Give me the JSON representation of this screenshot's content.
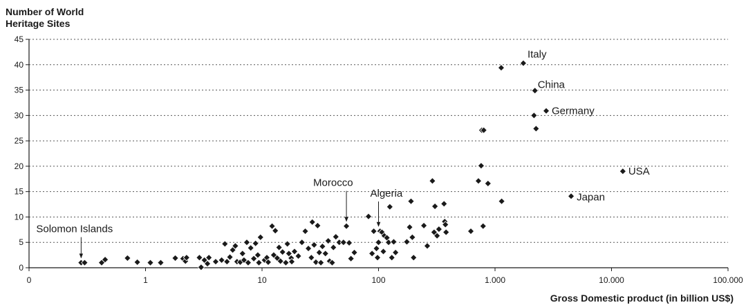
{
  "chart_data": {
    "type": "scatter",
    "title": "",
    "ylabel": "Number of World\nHeritage Sites",
    "xlabel": "Gross Domestic product (in billion US$)",
    "x_scale": "log",
    "xlim": [
      0.1,
      100000
    ],
    "ylim": [
      0,
      45
    ],
    "x_ticks": [
      0.1,
      1,
      10,
      100,
      1000,
      10000,
      100000
    ],
    "x_tick_labels": [
      "0",
      "1",
      "10",
      "100",
      "1.000",
      "10.000",
      "100.000"
    ],
    "y_ticks": [
      0,
      5,
      10,
      15,
      20,
      25,
      30,
      35,
      40,
      45
    ],
    "y_tick_labels": [
      "0",
      "5",
      "10",
      "15",
      "20",
      "25",
      "30",
      "35",
      "40",
      "45"
    ],
    "grid": "horizontal dotted",
    "marker": "diamond",
    "colors": {
      "marker": "#1a1a1a",
      "grid": "#555555",
      "axis": "#1a1a1a"
    },
    "points": [
      {
        "x": 0.28,
        "y": 1
      },
      {
        "x": 0.3,
        "y": 1
      },
      {
        "x": 0.42,
        "y": 1
      },
      {
        "x": 0.45,
        "y": 1.6
      },
      {
        "x": 0.7,
        "y": 1.9
      },
      {
        "x": 0.85,
        "y": 1.1
      },
      {
        "x": 1.1,
        "y": 1
      },
      {
        "x": 1.35,
        "y": 1
      },
      {
        "x": 1.8,
        "y": 1.9
      },
      {
        "x": 2.1,
        "y": 1.8
      },
      {
        "x": 2.2,
        "y": 1.3
      },
      {
        "x": 2.25,
        "y": 2
      },
      {
        "x": 2.9,
        "y": 2
      },
      {
        "x": 3.0,
        "y": 0.1
      },
      {
        "x": 3.2,
        "y": 1.5
      },
      {
        "x": 3.5,
        "y": 2
      },
      {
        "x": 3.4,
        "y": 0.8
      },
      {
        "x": 4.0,
        "y": 1.2
      },
      {
        "x": 4.5,
        "y": 1.5
      },
      {
        "x": 4.8,
        "y": 4.7
      },
      {
        "x": 5.0,
        "y": 1.2
      },
      {
        "x": 5.3,
        "y": 2.1
      },
      {
        "x": 5.6,
        "y": 3.5
      },
      {
        "x": 5.9,
        "y": 4.3
      },
      {
        "x": 6.1,
        "y": 1.2
      },
      {
        "x": 6.5,
        "y": 1.1
      },
      {
        "x": 6.8,
        "y": 2.8
      },
      {
        "x": 7.0,
        "y": 1.5
      },
      {
        "x": 7.4,
        "y": 5
      },
      {
        "x": 7.6,
        "y": 1
      },
      {
        "x": 8.0,
        "y": 3.9
      },
      {
        "x": 8.5,
        "y": 1.8
      },
      {
        "x": 8.8,
        "y": 4.8
      },
      {
        "x": 9.2,
        "y": 2.5
      },
      {
        "x": 9.4,
        "y": 1
      },
      {
        "x": 9.7,
        "y": 6
      },
      {
        "x": 10.5,
        "y": 1.5
      },
      {
        "x": 11,
        "y": 2
      },
      {
        "x": 11.3,
        "y": 1.1
      },
      {
        "x": 12.2,
        "y": 8.2
      },
      {
        "x": 12.6,
        "y": 2.5
      },
      {
        "x": 13,
        "y": 7.3
      },
      {
        "x": 13.5,
        "y": 1.9
      },
      {
        "x": 14,
        "y": 4
      },
      {
        "x": 14.4,
        "y": 1.3
      },
      {
        "x": 15,
        "y": 3.1
      },
      {
        "x": 16,
        "y": 1
      },
      {
        "x": 16.5,
        "y": 4.7
      },
      {
        "x": 17,
        "y": 2.8
      },
      {
        "x": 17.8,
        "y": 1.9
      },
      {
        "x": 18,
        "y": 1.2
      },
      {
        "x": 19,
        "y": 3.2
      },
      {
        "x": 20.5,
        "y": 2.3
      },
      {
        "x": 22,
        "y": 5
      },
      {
        "x": 23.5,
        "y": 7.2
      },
      {
        "x": 25,
        "y": 3.8
      },
      {
        "x": 26.5,
        "y": 2
      },
      {
        "x": 27,
        "y": 9
      },
      {
        "x": 28,
        "y": 4.5
      },
      {
        "x": 29,
        "y": 1.1
      },
      {
        "x": 30,
        "y": 8.3
      },
      {
        "x": 31,
        "y": 3
      },
      {
        "x": 32,
        "y": 1
      },
      {
        "x": 33,
        "y": 4.2
      },
      {
        "x": 35,
        "y": 2.8
      },
      {
        "x": 37,
        "y": 5.3
      },
      {
        "x": 38,
        "y": 1.3
      },
      {
        "x": 40,
        "y": 1
      },
      {
        "x": 41,
        "y": 4
      },
      {
        "x": 43,
        "y": 6.1
      },
      {
        "x": 46,
        "y": 5
      },
      {
        "x": 50,
        "y": 5
      },
      {
        "x": 53,
        "y": 8.2
      },
      {
        "x": 56,
        "y": 4.9
      },
      {
        "x": 58,
        "y": 1.8
      },
      {
        "x": 62,
        "y": 3
      },
      {
        "x": 82,
        "y": 10.1
      },
      {
        "x": 88,
        "y": 2.8
      },
      {
        "x": 91,
        "y": 7.2
      },
      {
        "x": 96,
        "y": 3.8
      },
      {
        "x": 98,
        "y": 2
      },
      {
        "x": 100,
        "y": 5
      },
      {
        "x": 103,
        "y": 7.2
      },
      {
        "x": 107,
        "y": 7
      },
      {
        "x": 110,
        "y": 3.2
      },
      {
        "x": 112,
        "y": 6.3
      },
      {
        "x": 118,
        "y": 5.9
      },
      {
        "x": 122,
        "y": 5
      },
      {
        "x": 125,
        "y": 12
      },
      {
        "x": 130,
        "y": 2
      },
      {
        "x": 135,
        "y": 5.1
      },
      {
        "x": 140,
        "y": 3
      },
      {
        "x": 175,
        "y": 5.1
      },
      {
        "x": 185,
        "y": 8
      },
      {
        "x": 190,
        "y": 13.1
      },
      {
        "x": 195,
        "y": 6
      },
      {
        "x": 200,
        "y": 2
      },
      {
        "x": 245,
        "y": 8.3
      },
      {
        "x": 262,
        "y": 4.3
      },
      {
        "x": 290,
        "y": 17.1
      },
      {
        "x": 300,
        "y": 7
      },
      {
        "x": 305,
        "y": 12.1
      },
      {
        "x": 318,
        "y": 6.3
      },
      {
        "x": 330,
        "y": 7.6
      },
      {
        "x": 365,
        "y": 12.6
      },
      {
        "x": 370,
        "y": 9.1
      },
      {
        "x": 375,
        "y": 8.5
      },
      {
        "x": 380,
        "y": 7
      },
      {
        "x": 620,
        "y": 7.2
      },
      {
        "x": 720,
        "y": 17.1
      },
      {
        "x": 760,
        "y": 20.1
      },
      {
        "x": 770,
        "y": 27.1
      },
      {
        "x": 790,
        "y": 8.2
      },
      {
        "x": 800,
        "y": 27.1
      },
      {
        "x": 870,
        "y": 16.6
      },
      {
        "x": 1140,
        "y": 13.1
      },
      {
        "x": 1130,
        "y": 39.4
      },
      {
        "x": 1750,
        "y": 40.3
      },
      {
        "x": 2160,
        "y": 30
      },
      {
        "x": 2200,
        "y": 34.9
      },
      {
        "x": 2250,
        "y": 27.4
      },
      {
        "x": 2750,
        "y": 30.9
      },
      {
        "x": 4500,
        "y": 14.1
      },
      {
        "x": 12500,
        "y": 19
      }
    ],
    "annotations": [
      {
        "text": "Italy",
        "x": 1750,
        "y": 40.3,
        "label_dx": 6,
        "label_dy": -13,
        "arrow": false
      },
      {
        "text": "China",
        "x": 2200,
        "y": 34.9,
        "label_dx": 4,
        "label_dy": -9,
        "arrow": false
      },
      {
        "text": "Germany",
        "x": 2750,
        "y": 30.9,
        "label_dx": 8,
        "label_dy": 0,
        "arrow": false
      },
      {
        "text": "USA",
        "x": 12500,
        "y": 19,
        "label_dx": 8,
        "label_dy": 0,
        "arrow": false
      },
      {
        "text": "Japan",
        "x": 4500,
        "y": 14.1,
        "label_dx": 8,
        "label_dy": 1,
        "arrow": false
      },
      {
        "text": "Morocco",
        "x": 53,
        "y": 8.2,
        "label_dx": -48,
        "label_dy": -63,
        "arrow": true
      },
      {
        "text": "Algeria",
        "x": 100,
        "y": 7.2,
        "label_dx": -12,
        "label_dy": -55,
        "arrow": true
      },
      {
        "text": "Solomon Islands",
        "x": 0.28,
        "y": 1,
        "label_dx": -65,
        "label_dy": -49,
        "arrow": true
      }
    ]
  }
}
